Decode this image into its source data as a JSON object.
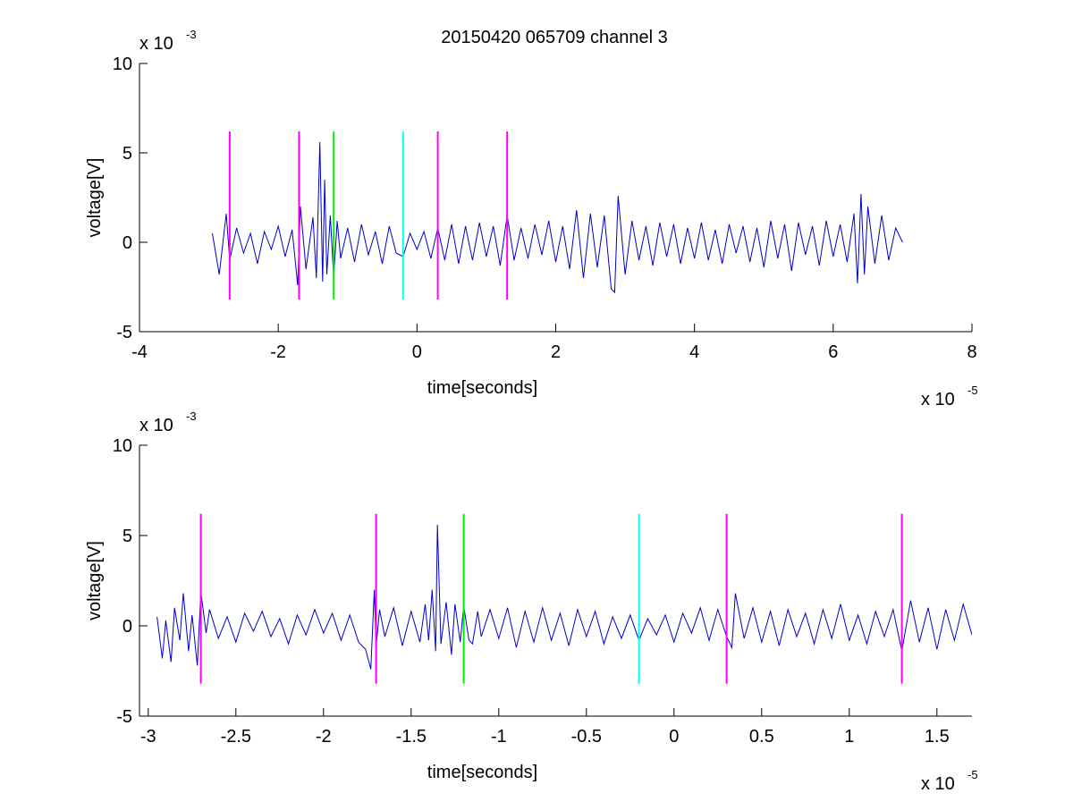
{
  "figure": {
    "title": "20150420 065709 channel 3"
  },
  "chart_data": [
    {
      "type": "line",
      "title": "20150420 065709 channel 3",
      "xlabel": "time[seconds]",
      "ylabel": "voltage[V]",
      "x_multiplier": "x 10",
      "x_exponent": "-5",
      "y_multiplier": "x 10",
      "y_exponent": "-3",
      "xlim": [
        -4,
        8
      ],
      "ylim": [
        -5,
        10
      ],
      "xticks": [
        -4,
        -2,
        0,
        2,
        4,
        6,
        8
      ],
      "xtick_labels": [
        "-4",
        "-2",
        "0",
        "2",
        "4",
        "6",
        "8"
      ],
      "yticks": [
        -5,
        0,
        5,
        10
      ],
      "ytick_labels": [
        "-5",
        "0",
        "5",
        "10"
      ],
      "grid": false,
      "series": [
        {
          "color": "#0000cc",
          "x": [
            -2.95,
            -2.85,
            -2.75,
            -2.7,
            -2.6,
            -2.5,
            -2.4,
            -2.3,
            -2.2,
            -2.1,
            -2.0,
            -1.9,
            -1.8,
            -1.72,
            -1.68,
            -1.6,
            -1.5,
            -1.45,
            -1.4,
            -1.36,
            -1.33,
            -1.3,
            -1.25,
            -1.2,
            -1.15,
            -1.1,
            -1.0,
            -0.9,
            -0.8,
            -0.7,
            -0.6,
            -0.5,
            -0.4,
            -0.3,
            -0.2,
            -0.1,
            0.0,
            0.1,
            0.2,
            0.3,
            0.4,
            0.5,
            0.6,
            0.7,
            0.8,
            0.9,
            1.0,
            1.1,
            1.2,
            1.3,
            1.4,
            1.5,
            1.6,
            1.7,
            1.8,
            1.9,
            2.0,
            2.1,
            2.2,
            2.3,
            2.4,
            2.5,
            2.6,
            2.7,
            2.8,
            2.85,
            2.9,
            3.0,
            3.1,
            3.2,
            3.3,
            3.4,
            3.5,
            3.6,
            3.7,
            3.8,
            3.9,
            4.0,
            4.1,
            4.2,
            4.3,
            4.4,
            4.5,
            4.6,
            4.7,
            4.8,
            4.9,
            5.0,
            5.1,
            5.2,
            5.3,
            5.4,
            5.5,
            5.6,
            5.7,
            5.8,
            5.9,
            6.0,
            6.1,
            6.2,
            6.3,
            6.35,
            6.4,
            6.45,
            6.5,
            6.6,
            6.7,
            6.8,
            6.9,
            7.0
          ],
          "y": [
            0.5,
            -1.8,
            1.6,
            -1.0,
            0.8,
            -0.6,
            0.5,
            -1.2,
            0.6,
            -0.4,
            0.9,
            -0.8,
            0.7,
            -2.4,
            2.0,
            -1.5,
            1.4,
            -2.0,
            5.6,
            -2.2,
            3.5,
            -1.8,
            1.5,
            -2.0,
            1.2,
            -0.9,
            0.8,
            -1.1,
            1.0,
            -0.7,
            0.6,
            -1.2,
            0.9,
            -0.6,
            -0.8,
            0.5,
            -0.4,
            0.6,
            -0.9,
            0.8,
            -1.0,
            1.0,
            -1.2,
            0.9,
            -1.0,
            1.1,
            -0.8,
            0.9,
            -1.3,
            1.5,
            -1.0,
            0.8,
            -0.9,
            1.0,
            -0.7,
            1.2,
            -1.1,
            0.9,
            -1.5,
            1.8,
            -2.0,
            1.6,
            -1.4,
            1.5,
            -2.6,
            -2.8,
            2.6,
            -1.8,
            1.2,
            -1.0,
            0.9,
            -1.3,
            1.1,
            -0.8,
            1.0,
            -1.2,
            0.8,
            -0.9,
            1.1,
            -1.0,
            0.7,
            -1.2,
            1.0,
            -0.6,
            0.9,
            -1.1,
            0.8,
            -1.4,
            1.2,
            -0.9,
            1.0,
            -1.6,
            1.1,
            -0.7,
            0.9,
            -1.3,
            1.2,
            -0.8,
            1.0,
            -1.1,
            1.6,
            -2.3,
            2.7,
            -1.8,
            2.0,
            -1.2,
            1.5,
            -1.0,
            0.8,
            0.0
          ]
        }
      ],
      "markers": [
        {
          "x": -2.7,
          "color": "#ff00ff",
          "y0": -3.2,
          "y1": 6.2
        },
        {
          "x": -1.7,
          "color": "#ff00ff",
          "y0": -3.2,
          "y1": 6.2
        },
        {
          "x": -1.2,
          "color": "#00ee00",
          "y0": -3.2,
          "y1": 6.2
        },
        {
          "x": -0.2,
          "color": "#00ffff",
          "y0": -3.2,
          "y1": 6.2
        },
        {
          "x": 0.3,
          "color": "#ff00ff",
          "y0": -3.2,
          "y1": 6.2
        },
        {
          "x": 1.3,
          "color": "#ff00ff",
          "y0": -3.2,
          "y1": 6.2
        }
      ]
    },
    {
      "type": "line",
      "title": "",
      "xlabel": "time[seconds]",
      "ylabel": "voltage[V]",
      "x_multiplier": "x 10",
      "x_exponent": "-5",
      "y_multiplier": "x 10",
      "y_exponent": "-3",
      "xlim": [
        -3.05,
        1.7
      ],
      "ylim": [
        -5,
        10
      ],
      "xticks": [
        -3,
        -2.5,
        -2,
        -1.5,
        -1,
        -0.5,
        0,
        0.5,
        1,
        1.5
      ],
      "xtick_labels": [
        "-3",
        "-2.5",
        "-2",
        "-1.5",
        "-1",
        "-0.5",
        "0",
        "0.5",
        "1",
        "1.5"
      ],
      "yticks": [
        -5,
        0,
        5,
        10
      ],
      "ytick_labels": [
        "-5",
        "0",
        "5",
        "10"
      ],
      "grid": false,
      "series": [
        {
          "color": "#0000cc",
          "x": [
            -2.95,
            -2.92,
            -2.9,
            -2.87,
            -2.85,
            -2.82,
            -2.8,
            -2.77,
            -2.75,
            -2.72,
            -2.7,
            -2.67,
            -2.65,
            -2.6,
            -2.55,
            -2.5,
            -2.45,
            -2.4,
            -2.35,
            -2.3,
            -2.25,
            -2.2,
            -2.15,
            -2.1,
            -2.05,
            -2.0,
            -1.95,
            -1.9,
            -1.85,
            -1.8,
            -1.76,
            -1.73,
            -1.71,
            -1.7,
            -1.68,
            -1.65,
            -1.6,
            -1.55,
            -1.5,
            -1.45,
            -1.42,
            -1.4,
            -1.38,
            -1.36,
            -1.35,
            -1.33,
            -1.3,
            -1.27,
            -1.25,
            -1.22,
            -1.2,
            -1.17,
            -1.15,
            -1.12,
            -1.1,
            -1.05,
            -1.0,
            -0.95,
            -0.9,
            -0.85,
            -0.8,
            -0.75,
            -0.7,
            -0.65,
            -0.6,
            -0.55,
            -0.5,
            -0.45,
            -0.4,
            -0.35,
            -0.3,
            -0.25,
            -0.2,
            -0.15,
            -0.1,
            -0.05,
            0.0,
            0.05,
            0.1,
            0.15,
            0.2,
            0.25,
            0.3,
            0.33,
            0.35,
            0.4,
            0.45,
            0.5,
            0.55,
            0.6,
            0.65,
            0.7,
            0.75,
            0.8,
            0.85,
            0.9,
            0.95,
            1.0,
            1.05,
            1.1,
            1.15,
            1.2,
            1.25,
            1.3,
            1.35,
            1.4,
            1.45,
            1.5,
            1.55,
            1.6,
            1.65,
            1.7
          ],
          "y": [
            0.5,
            -1.8,
            0.3,
            -2.0,
            1.0,
            -0.8,
            1.8,
            -1.4,
            0.6,
            -2.2,
            1.9,
            -0.4,
            0.9,
            -0.7,
            0.5,
            -0.9,
            0.7,
            -0.3,
            0.8,
            -0.6,
            0.4,
            -1.0,
            0.6,
            -0.5,
            0.9,
            -0.4,
            0.7,
            -0.8,
            0.6,
            -0.9,
            -1.3,
            -2.4,
            2.0,
            -1.2,
            0.9,
            -0.6,
            1.0,
            -1.1,
            0.8,
            -0.9,
            1.2,
            -0.8,
            2.0,
            -1.4,
            5.6,
            -1.0,
            1.3,
            -1.6,
            1.2,
            -0.9,
            1.1,
            -0.8,
            -1.0,
            0.8,
            -0.6,
            0.9,
            -0.7,
            1.0,
            -1.2,
            0.8,
            -0.9,
            1.0,
            -0.8,
            0.7,
            -1.1,
            0.9,
            -0.6,
            0.8,
            -1.0,
            0.5,
            -0.7,
            0.6,
            -0.8,
            0.4,
            -0.5,
            0.6,
            -0.9,
            0.7,
            -0.4,
            1.0,
            -0.8,
            0.9,
            -0.6,
            -1.2,
            1.8,
            -0.7,
            1.0,
            -0.9,
            0.8,
            -1.1,
            0.9,
            -0.6,
            0.7,
            -1.0,
            0.9,
            -0.7,
            1.2,
            -0.8,
            0.6,
            -1.0,
            0.8,
            -0.6,
            0.9,
            -1.4,
            1.4,
            -0.9,
            1.0,
            -1.3,
            0.9,
            -0.8,
            1.2,
            -0.5
          ]
        }
      ],
      "markers": [
        {
          "x": -2.7,
          "color": "#ff00ff",
          "y0": -3.2,
          "y1": 6.2
        },
        {
          "x": -1.7,
          "color": "#ff00ff",
          "y0": -3.2,
          "y1": 6.2
        },
        {
          "x": -1.2,
          "color": "#00ee00",
          "y0": -3.2,
          "y1": 6.2
        },
        {
          "x": -0.2,
          "color": "#00ffff",
          "y0": -3.2,
          "y1": 6.2
        },
        {
          "x": 0.3,
          "color": "#ff00ff",
          "y0": -3.2,
          "y1": 6.2
        },
        {
          "x": 1.3,
          "color": "#ff00ff",
          "y0": -3.2,
          "y1": 6.2
        }
      ]
    }
  ]
}
